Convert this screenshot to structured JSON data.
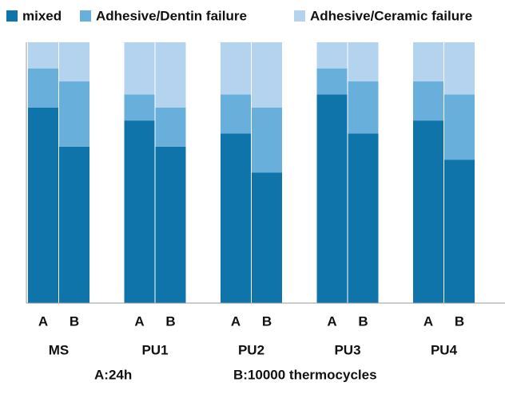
{
  "chart_data": {
    "type": "stacked-bar",
    "groups": [
      "MS",
      "PU1",
      "PU2",
      "PU3",
      "PU4"
    ],
    "subgroups": [
      "A",
      "B"
    ],
    "ylim": [
      0,
      100
    ],
    "series": [
      {
        "name": "mixed",
        "color": "#0f74a9",
        "values": [
          75,
          60,
          70,
          60,
          65,
          50,
          80,
          65,
          70,
          55
        ]
      },
      {
        "name": "Adhesive/Dentin failure",
        "color": "#69afdc",
        "values": [
          15,
          25,
          10,
          15,
          15,
          25,
          10,
          20,
          15,
          25
        ]
      },
      {
        "name": "Adhesive/Ceramic failure",
        "color": "#b3d3ee",
        "values": [
          10,
          15,
          20,
          25,
          20,
          25,
          10,
          15,
          15,
          20
        ]
      }
    ],
    "annotations": [
      "A:24h",
      "B:10000 thermocycles"
    ]
  }
}
